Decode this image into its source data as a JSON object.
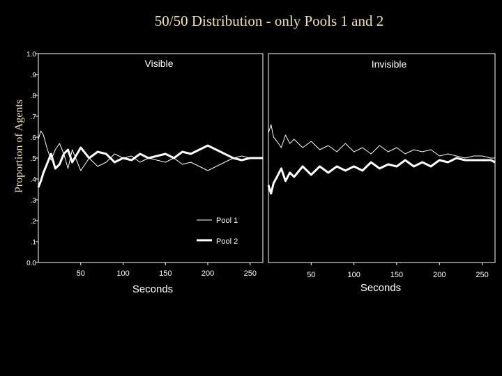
{
  "title": "50/50 Distribution - only Pools 1 and 2",
  "colors": {
    "background": "#000000",
    "title": "#f2e3a6",
    "lines": "#ffffff"
  },
  "chart_data": [
    {
      "type": "line",
      "panel_title": "Visible",
      "xlabel": "Seconds",
      "ylabel": "Proportion of Agents",
      "xlim": [
        0,
        265
      ],
      "ylim": [
        0.0,
        1.0
      ],
      "x_ticks": [
        50,
        100,
        150,
        200,
        250
      ],
      "y_ticks": [
        "0.0",
        ".1",
        ".2",
        ".3",
        ".4",
        ".5",
        ".6",
        ".7",
        ".8",
        ".9",
        "1.0"
      ],
      "legend": [
        "Pool 1",
        "Pool 2"
      ],
      "legend_position": "bottom-right",
      "series": [
        {
          "name": "Pool 1",
          "line": "thin",
          "x": [
            0,
            3,
            6,
            10,
            15,
            20,
            25,
            30,
            35,
            40,
            50,
            60,
            70,
            80,
            90,
            100,
            110,
            120,
            130,
            140,
            150,
            160,
            170,
            180,
            190,
            200,
            210,
            220,
            230,
            240,
            250,
            260,
            265
          ],
          "y": [
            0.59,
            0.63,
            0.61,
            0.55,
            0.49,
            0.54,
            0.57,
            0.52,
            0.45,
            0.54,
            0.44,
            0.5,
            0.46,
            0.48,
            0.52,
            0.5,
            0.51,
            0.48,
            0.5,
            0.49,
            0.48,
            0.5,
            0.47,
            0.48,
            0.46,
            0.44,
            0.46,
            0.48,
            0.5,
            0.51,
            0.5,
            0.5,
            0.5
          ]
        },
        {
          "name": "Pool 2",
          "line": "thick",
          "x": [
            0,
            3,
            6,
            10,
            15,
            20,
            25,
            30,
            35,
            40,
            50,
            60,
            70,
            80,
            90,
            100,
            110,
            120,
            130,
            140,
            150,
            160,
            170,
            180,
            190,
            200,
            210,
            220,
            230,
            240,
            250,
            260,
            265
          ],
          "y": [
            0.36,
            0.39,
            0.43,
            0.47,
            0.52,
            0.45,
            0.47,
            0.52,
            0.54,
            0.48,
            0.55,
            0.5,
            0.53,
            0.52,
            0.48,
            0.5,
            0.49,
            0.52,
            0.5,
            0.51,
            0.52,
            0.5,
            0.53,
            0.52,
            0.54,
            0.56,
            0.54,
            0.52,
            0.5,
            0.49,
            0.5,
            0.5,
            0.5
          ]
        }
      ]
    },
    {
      "type": "line",
      "panel_title": "Invisible",
      "xlabel": "Seconds",
      "xlim": [
        0,
        265
      ],
      "ylim": [
        0.0,
        1.0
      ],
      "x_ticks": [
        50,
        100,
        150,
        200,
        250
      ],
      "series": [
        {
          "name": "Pool 1",
          "line": "thin",
          "x": [
            0,
            3,
            6,
            10,
            15,
            20,
            25,
            30,
            40,
            50,
            60,
            70,
            80,
            90,
            100,
            110,
            120,
            130,
            140,
            150,
            160,
            170,
            180,
            190,
            200,
            210,
            220,
            230,
            240,
            250,
            260,
            265
          ],
          "y": [
            0.62,
            0.66,
            0.6,
            0.58,
            0.55,
            0.61,
            0.57,
            0.59,
            0.55,
            0.58,
            0.54,
            0.56,
            0.53,
            0.57,
            0.53,
            0.55,
            0.52,
            0.56,
            0.53,
            0.55,
            0.52,
            0.54,
            0.53,
            0.54,
            0.51,
            0.52,
            0.51,
            0.5,
            0.51,
            0.51,
            0.5,
            0.5
          ]
        },
        {
          "name": "Pool 2",
          "line": "thick",
          "x": [
            0,
            3,
            6,
            10,
            15,
            20,
            25,
            30,
            40,
            50,
            60,
            70,
            80,
            90,
            100,
            110,
            120,
            130,
            140,
            150,
            160,
            170,
            180,
            190,
            200,
            210,
            220,
            230,
            240,
            250,
            260,
            265
          ],
          "y": [
            0.37,
            0.33,
            0.38,
            0.41,
            0.45,
            0.39,
            0.43,
            0.41,
            0.46,
            0.42,
            0.46,
            0.43,
            0.46,
            0.44,
            0.46,
            0.44,
            0.48,
            0.45,
            0.47,
            0.46,
            0.49,
            0.46,
            0.48,
            0.46,
            0.49,
            0.48,
            0.5,
            0.49,
            0.49,
            0.49,
            0.49,
            0.48
          ]
        }
      ]
    }
  ]
}
